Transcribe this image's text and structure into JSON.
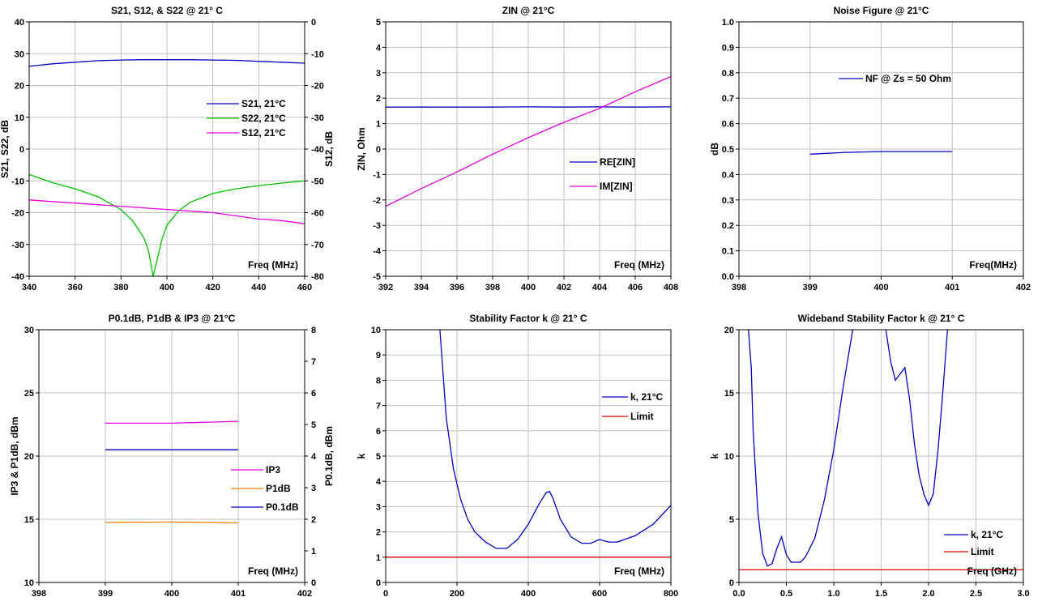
{
  "chart_data": [
    {
      "type": "line",
      "title": "S21, S12, & S22 @ 21° C",
      "xlabel": "Freq (MHz)",
      "ylabel": "S21, S22, dB",
      "y2label": "S12, dB",
      "xlim": [
        340,
        460
      ],
      "ylim": [
        -40,
        40
      ],
      "y2lim": [
        -80,
        0
      ],
      "xticks": [
        "340",
        "360",
        "380",
        "400",
        "420",
        "440",
        "460"
      ],
      "yticks": [
        "-40",
        "-30",
        "-20",
        "-10",
        "0",
        "10",
        "20",
        "30",
        "40"
      ],
      "y2ticks": [
        "-80",
        "-70",
        "-60",
        "-50",
        "-40",
        "-30",
        "-20",
        "-10",
        "0"
      ],
      "grid": true,
      "legend_position": "right",
      "series": [
        {
          "name": "S21, 21°C",
          "color": "#0000c0",
          "axis": "left",
          "x": [
            340,
            350,
            360,
            370,
            380,
            390,
            400,
            410,
            420,
            430,
            440,
            450,
            460
          ],
          "y": [
            26.0,
            26.8,
            27.3,
            27.8,
            28.0,
            28.1,
            28.1,
            28.1,
            28.0,
            27.9,
            27.6,
            27.3,
            27.0
          ]
        },
        {
          "name": "S22, 21°C",
          "color": "#00c000",
          "axis": "left",
          "x": [
            340,
            350,
            360,
            370,
            380,
            385,
            390,
            392,
            394,
            396,
            398,
            400,
            405,
            410,
            420,
            430,
            440,
            450,
            460
          ],
          "y": [
            -8,
            -10.5,
            -12.5,
            -15,
            -19,
            -22.5,
            -28,
            -32,
            -40,
            -34,
            -28,
            -24,
            -19.5,
            -16.8,
            -14,
            -12.5,
            -11.5,
            -10.7,
            -10
          ]
        },
        {
          "name": "S12, 21°C",
          "color": "#e000e0",
          "axis": "right",
          "x": [
            340,
            350,
            360,
            370,
            380,
            390,
            400,
            410,
            420,
            430,
            440,
            450,
            460
          ],
          "y": [
            -56,
            -56.5,
            -57,
            -57.5,
            -58,
            -58.5,
            -59,
            -59.5,
            -60,
            -61,
            -62,
            -62.5,
            -63.5
          ]
        }
      ]
    },
    {
      "type": "line",
      "title": "ZIN @ 21°C",
      "xlabel": "Freq (MHz)",
      "ylabel": "ZIN, Ohm",
      "xlim": [
        392,
        408
      ],
      "ylim": [
        -5,
        5
      ],
      "xticks": [
        "392",
        "394",
        "396",
        "398",
        "400",
        "402",
        "404",
        "406",
        "408"
      ],
      "yticks": [
        "-5",
        "-4",
        "-3",
        "-2",
        "-1",
        "0",
        "1",
        "2",
        "3",
        "4",
        "5"
      ],
      "grid": true,
      "legend_position": "right",
      "series": [
        {
          "name": "RE[ZIN]",
          "color": "#0000c0",
          "x": [
            392,
            394,
            396,
            398,
            400,
            402,
            404,
            406,
            408
          ],
          "y": [
            1.65,
            1.65,
            1.65,
            1.65,
            1.66,
            1.65,
            1.66,
            1.65,
            1.66
          ]
        },
        {
          "name": "IM[ZIN]",
          "color": "#e000e0",
          "x": [
            392,
            394,
            396,
            398,
            400,
            402,
            404,
            406,
            408
          ],
          "y": [
            -2.25,
            -1.55,
            -0.9,
            -0.2,
            0.45,
            1.05,
            1.6,
            2.25,
            2.85
          ]
        }
      ]
    },
    {
      "type": "line",
      "title": "Noise Figure @ 21°C",
      "xlabel": "Freq(MHz)",
      "ylabel": "dB",
      "xlim": [
        398,
        402
      ],
      "ylim": [
        0,
        1.0
      ],
      "xticks": [
        "398",
        "399",
        "400",
        "401",
        "402"
      ],
      "yticks": [
        "0.0",
        "0.1",
        "0.2",
        "0.3",
        "0.4",
        "0.5",
        "0.6",
        "0.7",
        "0.8",
        "0.9",
        "1.0"
      ],
      "grid": true,
      "legend_position": "top",
      "series": [
        {
          "name": "NF @ Zs = 50 Ohm",
          "color": "#0000c0",
          "x": [
            399,
            399.5,
            400,
            400.5,
            401
          ],
          "y": [
            0.48,
            0.487,
            0.49,
            0.49,
            0.49
          ]
        }
      ]
    },
    {
      "type": "line",
      "title": "P0.1dB, P1dB & IP3 @ 21°C",
      "xlabel": "Freq (MHz)",
      "ylabel": "IP3 & P1dB, dBm",
      "y2label": "P0.1dB, dBm",
      "xlim": [
        398,
        402
      ],
      "ylim": [
        10,
        30
      ],
      "y2lim": [
        0,
        8
      ],
      "xticks": [
        "398",
        "399",
        "400",
        "401",
        "402"
      ],
      "yticks": [
        "10",
        "15",
        "20",
        "25",
        "30"
      ],
      "y2ticks": [
        "0",
        "1",
        "2",
        "3",
        "4",
        "5",
        "6",
        "7",
        "8"
      ],
      "grid": true,
      "legend_position": "right",
      "series": [
        {
          "name": "IP3",
          "color": "#e000e0",
          "axis": "left",
          "x": [
            399,
            400,
            401
          ],
          "y": [
            22.6,
            22.6,
            22.75
          ]
        },
        {
          "name": "P1dB",
          "color": "#f08000",
          "axis": "left",
          "x": [
            399,
            400,
            401
          ],
          "y": [
            14.75,
            14.78,
            14.72
          ]
        },
        {
          "name": "P0.1dB",
          "color": "#0000c0",
          "axis": "right",
          "x": [
            399,
            400,
            401
          ],
          "y": [
            4.2,
            4.2,
            4.2
          ]
        }
      ]
    },
    {
      "type": "line",
      "title": "Stability Factor k @ 21° C",
      "xlabel": "Freq (MHz)",
      "ylabel": "k",
      "xlim": [
        0,
        800
      ],
      "ylim": [
        0,
        10
      ],
      "xticks": [
        "0",
        "200",
        "400",
        "600",
        "800"
      ],
      "yticks": [
        "0",
        "1",
        "2",
        "3",
        "4",
        "5",
        "6",
        "7",
        "8",
        "9",
        "10"
      ],
      "grid": true,
      "legend_position": "right",
      "series": [
        {
          "name": "k, 21°C",
          "color": "#0000c0",
          "x": [
            152,
            170,
            190,
            210,
            230,
            250,
            280,
            310,
            340,
            370,
            400,
            430,
            450,
            460,
            470,
            490,
            520,
            550,
            575,
            600,
            625,
            650,
            700,
            750,
            800
          ],
          "y": [
            10,
            6.5,
            4.5,
            3.3,
            2.5,
            2.0,
            1.6,
            1.35,
            1.35,
            1.7,
            2.3,
            3.1,
            3.55,
            3.6,
            3.3,
            2.5,
            1.8,
            1.55,
            1.55,
            1.7,
            1.6,
            1.6,
            1.85,
            2.3,
            3.05
          ]
        },
        {
          "name": "Limit",
          "color": "#e00000",
          "x": [
            0,
            800
          ],
          "y": [
            1,
            1
          ]
        }
      ]
    },
    {
      "type": "line",
      "title": "Wideband Stability Factor k @ 21° C",
      "xlabel": "Freq (GHz)",
      "ylabel": "k",
      "xlim": [
        0.0,
        3.0
      ],
      "ylim": [
        0,
        20
      ],
      "xticks": [
        "0.0",
        "0.5",
        "1.0",
        "1.5",
        "2.0",
        "2.5",
        "3.0"
      ],
      "yticks": [
        "0",
        "5",
        "10",
        "15",
        "20"
      ],
      "grid": true,
      "legend_position": "bottom-right",
      "series": [
        {
          "name": "k, 21°C",
          "color": "#0000c0",
          "x": [
            0.1,
            0.13,
            0.15,
            0.2,
            0.25,
            0.3,
            0.35,
            0.4,
            0.45,
            0.5,
            0.55,
            0.6,
            0.65,
            0.7,
            0.8,
            0.9,
            1.0,
            1.1,
            1.2
          ],
          "y": [
            20,
            17,
            12,
            5.5,
            2.3,
            1.3,
            1.5,
            2.7,
            3.6,
            2.2,
            1.6,
            1.6,
            1.6,
            2.0,
            3.5,
            6.5,
            10.5,
            15.5,
            20
          ]
        },
        {
          "name": "k, 21°C",
          "color": "#0000c0",
          "x": [
            1.55,
            1.6,
            1.65,
            1.7,
            1.75,
            1.8,
            1.85,
            1.9,
            1.95,
            2.0,
            2.05,
            2.1,
            2.15,
            2.2
          ],
          "y": [
            20,
            17.5,
            16.0,
            16.5,
            17.0,
            14.5,
            11.0,
            8.5,
            7.0,
            6.1,
            7.0,
            10.5,
            15.0,
            20
          ]
        },
        {
          "name": "Limit",
          "color": "#e00000",
          "x": [
            0.0,
            3.0
          ],
          "y": [
            1,
            1
          ]
        }
      ]
    }
  ]
}
